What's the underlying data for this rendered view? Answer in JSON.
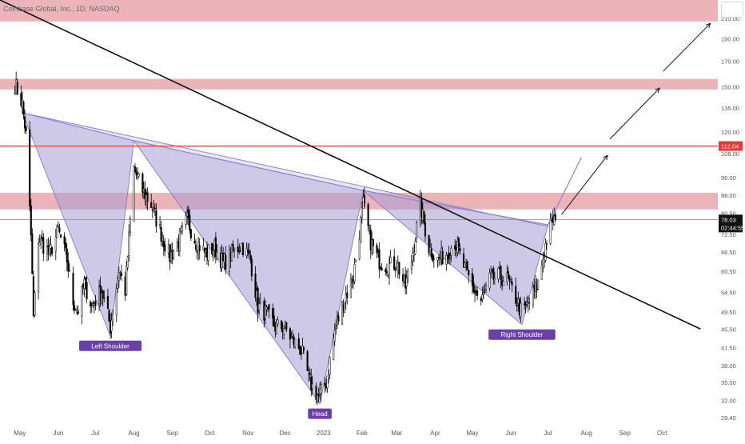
{
  "title": "Coinbase Global, Inc., 1D, NASDAQ",
  "chart_data": {
    "type": "candlestick",
    "title": "Coinbase Global, Inc., 1D, NASDAQ",
    "y_scale": "log",
    "ylim": [
      28.5,
      230
    ],
    "y_ticks": [
      "210.00",
      "190.00",
      "170.00",
      "150.00",
      "135.00",
      "120.00",
      "108.00",
      "96.00",
      "88.00",
      "80.50",
      "72.50",
      "66.50",
      "60.50",
      "54.50",
      "49.50",
      "45.50",
      "41.50",
      "38.00",
      "35.00",
      "32.00",
      "29.40"
    ],
    "x_ticks": [
      "May",
      "Jun",
      "Jul",
      "Aug",
      "Sep",
      "Oct",
      "Nov",
      "Dec",
      "2023",
      "Feb",
      "Mar",
      "Apr",
      "May",
      "Jun",
      "Jul",
      "Aug",
      "Sep",
      "Oct"
    ],
    "price_labels": {
      "resistance": "112.04",
      "last_price": "78.03",
      "countdown": "02:44:55"
    },
    "horizontal_levels": [
      {
        "type": "zone",
        "low": 207,
        "high": 230,
        "color": "#e8a7ab"
      },
      {
        "type": "zone",
        "low": 148,
        "high": 156,
        "color": "#e8a7ab"
      },
      {
        "type": "line",
        "value": 112.04,
        "color": "#e53935"
      },
      {
        "type": "zone",
        "low": 82,
        "high": 89,
        "color": "#e8a7ab"
      },
      {
        "type": "line",
        "value": 78.03,
        "color": "#8a8a8a"
      }
    ],
    "pattern": {
      "name": "inverse head and shoulders",
      "fill": "#a89dd6",
      "labels": [
        "Left Shoulder",
        "Head",
        "Right Shoulder"
      ],
      "points": [
        {
          "date": "2022-05-03",
          "price": 132
        },
        {
          "date": "2022-07-13",
          "price": 44
        },
        {
          "date": "2022-08-01",
          "price": 115
        },
        {
          "date": "2022-12-29",
          "price": 31.5
        },
        {
          "date": "2023-02-02",
          "price": 90
        },
        {
          "date": "2023-06-10",
          "price": 46.5
        },
        {
          "date": "2023-07-01",
          "price": 76
        }
      ]
    },
    "trendline": {
      "color": "#111111",
      "from": {
        "date": "2022-04-15",
        "price": 230
      },
      "to": {
        "date": "2023-11-01",
        "price": 45.5
      }
    },
    "projection_arrows": [
      {
        "from": {
          "date": "2023-07-12",
          "price": 80
        },
        "to": {
          "date": "2023-08-18",
          "price": 107
        }
      },
      {
        "from": {
          "date": "2023-08-20",
          "price": 116
        },
        "to": {
          "date": "2023-09-29",
          "price": 149
        }
      },
      {
        "from": {
          "date": "2023-10-02",
          "price": 162
        },
        "to": {
          "date": "2023-11-09",
          "price": 205
        }
      }
    ],
    "colors": {
      "up": "#ffffff",
      "down": "#000000",
      "wick": "#000000",
      "label_bg": "#6b3fa8",
      "last_price_bg": "#111111",
      "resistance_bg": "#e53935"
    },
    "series": [
      {
        "name": "",
        "anchors": [
          [
            "2022-04-27",
            152
          ],
          [
            "2022-05-03",
            138
          ],
          [
            "2022-05-06",
            118
          ],
          [
            "2022-05-10",
            72
          ],
          [
            "2022-05-12",
            48
          ],
          [
            "2022-05-16",
            71
          ],
          [
            "2022-05-25",
            66
          ],
          [
            "2022-06-01",
            74
          ],
          [
            "2022-06-08",
            64
          ],
          [
            "2022-06-13",
            52
          ],
          [
            "2022-06-17",
            50
          ],
          [
            "2022-06-22",
            57
          ],
          [
            "2022-06-28",
            51
          ],
          [
            "2022-07-06",
            55
          ],
          [
            "2022-07-13",
            46
          ],
          [
            "2022-07-20",
            61
          ],
          [
            "2022-07-25",
            55
          ],
          [
            "2022-08-01",
            100
          ],
          [
            "2022-08-08",
            90
          ],
          [
            "2022-08-15",
            84
          ],
          [
            "2022-08-22",
            74
          ],
          [
            "2022-08-30",
            65
          ],
          [
            "2022-09-06",
            70
          ],
          [
            "2022-09-13",
            78
          ],
          [
            "2022-09-20",
            70
          ],
          [
            "2022-09-28",
            66
          ],
          [
            "2022-10-05",
            68
          ],
          [
            "2022-10-12",
            63
          ],
          [
            "2022-10-19",
            66
          ],
          [
            "2022-10-27",
            69
          ],
          [
            "2022-11-03",
            64
          ],
          [
            "2022-11-09",
            51
          ],
          [
            "2022-11-16",
            49
          ],
          [
            "2022-11-23",
            46
          ],
          [
            "2022-11-30",
            46
          ],
          [
            "2022-12-07",
            43
          ],
          [
            "2022-12-14",
            41
          ],
          [
            "2022-12-21",
            35
          ],
          [
            "2022-12-28",
            32.5
          ],
          [
            "2023-01-03",
            35
          ],
          [
            "2023-01-10",
            45
          ],
          [
            "2023-01-17",
            52
          ],
          [
            "2023-01-25",
            59
          ],
          [
            "2023-02-02",
            84
          ],
          [
            "2023-02-08",
            70
          ],
          [
            "2023-02-14",
            64
          ],
          [
            "2023-02-22",
            62
          ],
          [
            "2023-03-01",
            63
          ],
          [
            "2023-03-08",
            56
          ],
          [
            "2023-03-13",
            64
          ],
          [
            "2023-03-20",
            84
          ],
          [
            "2023-03-27",
            68
          ],
          [
            "2023-04-03",
            64
          ],
          [
            "2023-04-10",
            66
          ],
          [
            "2023-04-17",
            70
          ],
          [
            "2023-04-24",
            62
          ],
          [
            "2023-05-01",
            56
          ],
          [
            "2023-05-08",
            52
          ],
          [
            "2023-05-15",
            58
          ],
          [
            "2023-05-22",
            59
          ],
          [
            "2023-05-29",
            58
          ],
          [
            "2023-06-05",
            53
          ],
          [
            "2023-06-10",
            49
          ],
          [
            "2023-06-16",
            52
          ],
          [
            "2023-06-23",
            57
          ],
          [
            "2023-06-30",
            71
          ],
          [
            "2023-07-05",
            78
          ],
          [
            "2023-07-07",
            78.03
          ]
        ]
      }
    ]
  }
}
